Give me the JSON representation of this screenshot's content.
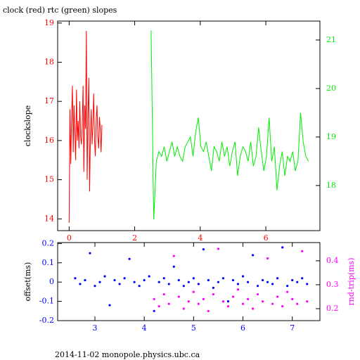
{
  "chart_data": [
    {
      "type": "line",
      "title": "clock (red) rtc (green) slopes",
      "y_label": "clockslope",
      "xlim": [
        -0.35,
        7.65
      ],
      "xticks": [
        0,
        2,
        4,
        6
      ],
      "ylim": [
        13.7,
        19.05
      ],
      "yticks": [
        14,
        15,
        16,
        17,
        18,
        19
      ],
      "y2lim": [
        17.07,
        21.39
      ],
      "y2ticks": [
        18,
        19,
        20,
        21
      ],
      "series": [
        {
          "color": "#ff0000",
          "axis": "y",
          "x": [
            0,
            0.025,
            0.05,
            0.075,
            0.1,
            0.125,
            0.15,
            0.175,
            0.2,
            0.225,
            0.25,
            0.275,
            0.3,
            0.325,
            0.35,
            0.375,
            0.4,
            0.425,
            0.45,
            0.475,
            0.5,
            0.525,
            0.55,
            0.575,
            0.6,
            0.625,
            0.65,
            0.675,
            0.7,
            0.725,
            0.75,
            0.775,
            0.8,
            0.825,
            0.85,
            0.875,
            0.9,
            0.925,
            0.95,
            0.975,
            1
          ],
          "values": [
            13.9,
            16.8,
            15.4,
            16.6,
            17.4,
            15.7,
            16.9,
            16.2,
            15.5,
            17.3,
            16.0,
            16.5,
            15.8,
            17.0,
            16.1,
            15.9,
            16.4,
            17.4,
            15.2,
            16.9,
            16.3,
            18.8,
            15.0,
            16.6,
            17.6,
            14.7,
            16.2,
            16.8,
            15.9,
            16.4,
            17.2,
            16.0,
            15.6,
            16.5,
            16.9,
            16.1,
            15.8,
            16.6,
            16.3,
            15.7,
            16.4
          ]
        },
        {
          "color": "#00ee00",
          "axis": "y2",
          "x": [
            2.5,
            2.58,
            2.66,
            2.74,
            2.82,
            2.9,
            2.98,
            3.06,
            3.14,
            3.22,
            3.3,
            3.38,
            3.46,
            3.54,
            3.62,
            3.7,
            3.78,
            3.86,
            3.94,
            4.02,
            4.1,
            4.18,
            4.26,
            4.34,
            4.42,
            4.5,
            4.58,
            4.66,
            4.74,
            4.82,
            4.9,
            4.98,
            5.06,
            5.14,
            5.22,
            5.3,
            5.38,
            5.46,
            5.54,
            5.62,
            5.7,
            5.78,
            5.86,
            5.94,
            6.02,
            6.1,
            6.18,
            6.26,
            6.34,
            6.42,
            6.5,
            6.58,
            6.66,
            6.74,
            6.82,
            6.9,
            6.98,
            7.06,
            7.14,
            7.22,
            7.3
          ],
          "values": [
            21.2,
            17.3,
            18.5,
            18.7,
            18.6,
            18.8,
            18.5,
            18.7,
            18.9,
            18.6,
            18.8,
            18.6,
            18.5,
            18.8,
            18.9,
            19.0,
            18.6,
            19.1,
            19.4,
            18.8,
            18.7,
            18.9,
            18.6,
            18.3,
            18.8,
            18.7,
            18.5,
            18.9,
            18.6,
            18.8,
            18.4,
            18.7,
            18.9,
            18.2,
            18.6,
            18.8,
            18.7,
            18.5,
            18.9,
            18.4,
            18.6,
            19.2,
            18.7,
            18.3,
            18.6,
            19.4,
            18.5,
            18.8,
            17.9,
            18.4,
            18.7,
            18.2,
            18.6,
            18.5,
            18.7,
            18.3,
            18.5,
            19.5,
            18.9,
            18.6,
            18.5
          ]
        }
      ]
    },
    {
      "type": "scatter",
      "y_label": "offset(ms)",
      "y2_label": "rnd-trip(ms)",
      "xlim": [
        2.245,
        7.56
      ],
      "xticks": [
        3,
        4,
        5,
        6,
        7
      ],
      "ylim": [
        -0.2,
        0.205
      ],
      "yticks": [
        -0.2,
        -0.1,
        0,
        0.1,
        0.2
      ],
      "y2lim": [
        0.15,
        0.476
      ],
      "y2ticks": [
        0.2,
        0.3,
        0.4
      ],
      "series": [
        {
          "color": "#0000ff",
          "axis": "y",
          "x": [
            2.6,
            2.7,
            2.8,
            2.9,
            3.0,
            3.1,
            3.2,
            3.3,
            3.4,
            3.5,
            3.6,
            3.7,
            3.8,
            3.9,
            4.0,
            4.1,
            4.2,
            4.3,
            4.4,
            4.5,
            4.6,
            4.7,
            4.8,
            4.9,
            5.0,
            5.1,
            5.2,
            5.3,
            5.4,
            5.5,
            5.6,
            5.7,
            5.8,
            5.9,
            6.0,
            6.1,
            6.2,
            6.3,
            6.4,
            6.5,
            6.6,
            6.7,
            6.8,
            6.9,
            7.0,
            7.1,
            7.2,
            7.3
          ],
          "values": [
            0.02,
            -0.01,
            0.01,
            0.15,
            -0.02,
            0.0,
            0.03,
            -0.12,
            0.01,
            -0.01,
            0.02,
            0.12,
            0.0,
            -0.02,
            0.01,
            0.03,
            -0.15,
            0.0,
            0.02,
            -0.01,
            0.08,
            0.01,
            -0.02,
            0.0,
            0.02,
            -0.01,
            0.17,
            0.01,
            -0.03,
            0.0,
            0.02,
            -0.1,
            0.01,
            -0.01,
            0.03,
            0.0,
            0.14,
            -0.02,
            0.01,
            0.0,
            -0.01,
            0.02,
            0.18,
            -0.02,
            0.01,
            0.0,
            0.02,
            -0.01
          ]
        },
        {
          "color": "#ff00ff",
          "axis": "y2",
          "x": [
            4.2,
            4.3,
            4.4,
            4.5,
            4.6,
            4.7,
            4.8,
            4.9,
            5.0,
            5.1,
            5.2,
            5.3,
            5.4,
            5.5,
            5.6,
            5.7,
            5.8,
            5.9,
            6.0,
            6.1,
            6.2,
            6.3,
            6.4,
            6.5,
            6.6,
            6.7,
            6.8,
            6.9,
            7.0,
            7.1,
            7.2,
            7.3
          ],
          "values": [
            0.24,
            0.21,
            0.26,
            0.22,
            0.42,
            0.25,
            0.2,
            0.23,
            0.27,
            0.22,
            0.24,
            0.19,
            0.26,
            0.45,
            0.23,
            0.21,
            0.25,
            0.28,
            0.22,
            0.24,
            0.2,
            0.26,
            0.23,
            0.41,
            0.22,
            0.25,
            0.21,
            0.27,
            0.24,
            0.22,
            0.44,
            0.23
          ]
        }
      ]
    }
  ],
  "footer": "2014-11-02 monopole.physics.ubc.ca"
}
